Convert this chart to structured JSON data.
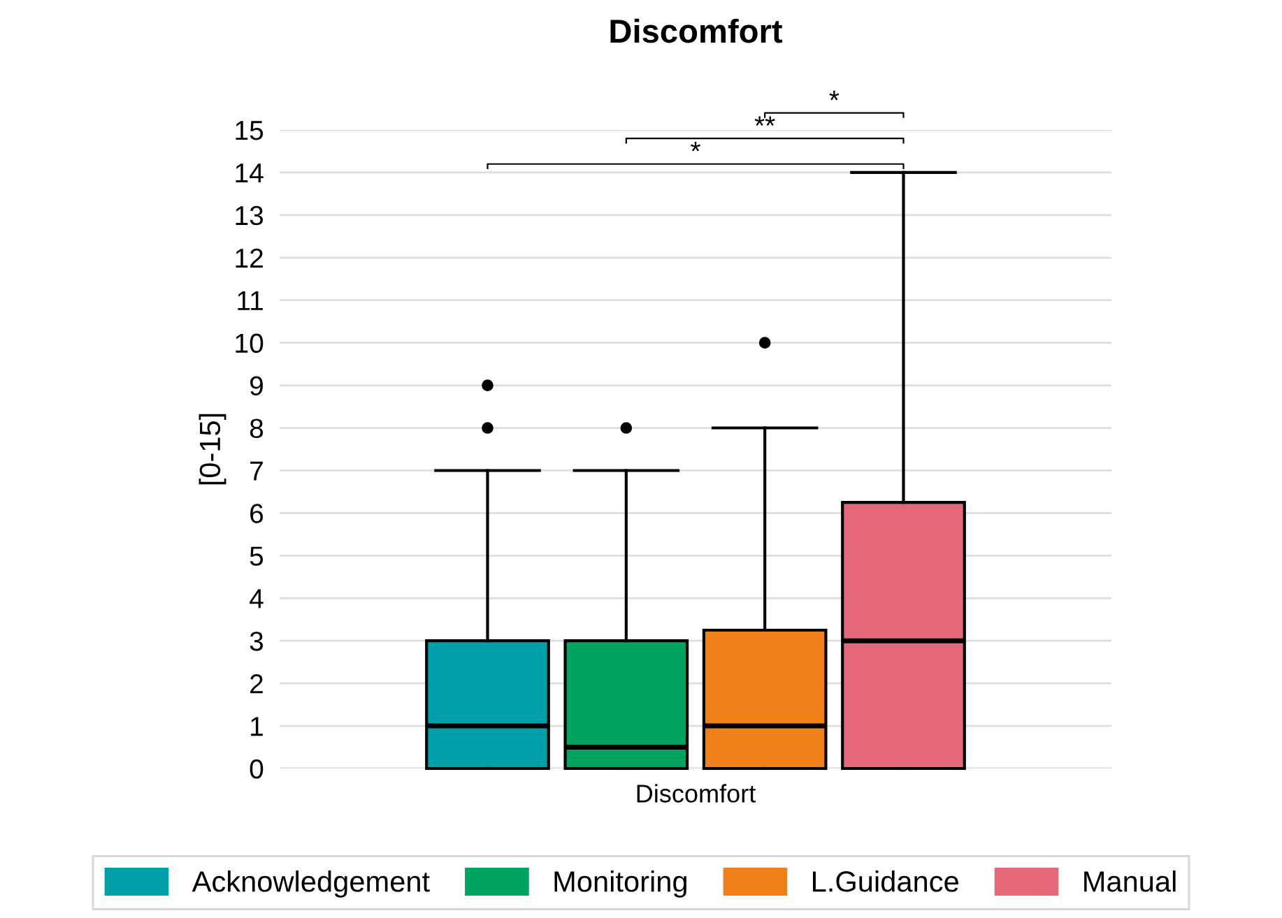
{
  "chart_data": {
    "type": "box",
    "title": "Discomfort",
    "ylabel": "[0-15]",
    "categories": [
      "Discomfort"
    ],
    "ylim": [
      0,
      15
    ],
    "yticks": [
      0,
      1,
      2,
      3,
      4,
      5,
      6,
      7,
      8,
      9,
      10,
      11,
      12,
      13,
      14,
      15
    ],
    "grid": "y",
    "legend": "bottom",
    "series": [
      {
        "name": "Acknowledgement",
        "color": "#00a0aa",
        "boxes": [
          {
            "low": 0,
            "q1": 0,
            "median": 1,
            "q3": 3,
            "high": 7,
            "outliers": [
              8,
              9
            ]
          }
        ]
      },
      {
        "name": "Monitoring",
        "color": "#00a45e",
        "boxes": [
          {
            "low": 0,
            "q1": 0,
            "median": 0.5,
            "q3": 3,
            "high": 7,
            "outliers": [
              8
            ]
          }
        ]
      },
      {
        "name": "L.Guidance",
        "color": "#f0801a",
        "boxes": [
          {
            "low": 0,
            "q1": 0,
            "median": 1,
            "q3": 3.25,
            "high": 8,
            "outliers": [
              10
            ]
          }
        ]
      },
      {
        "name": "Manual",
        "color": "#e5677a",
        "boxes": [
          {
            "low": 0,
            "q1": 0,
            "median": 3,
            "q3": 6.25,
            "high": 14
          }
        ]
      }
    ],
    "annotations": [
      "*",
      "**",
      "*"
    ]
  }
}
